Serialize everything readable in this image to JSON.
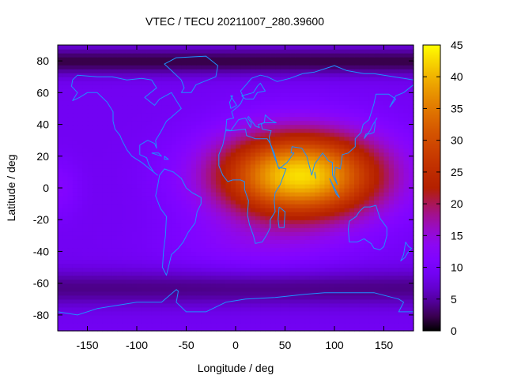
{
  "chart_data": {
    "type": "heatmap",
    "title": "VTEC / TECU 20211007_280.39600",
    "xlabel": "Longitude / deg",
    "ylabel": "Latitude / deg",
    "xlim": [
      -180,
      180
    ],
    "ylim": [
      -90,
      90
    ],
    "x_ticks": [
      -150,
      -100,
      -50,
      0,
      50,
      100,
      150
    ],
    "y_ticks": [
      -80,
      -60,
      -40,
      -20,
      0,
      20,
      40,
      60,
      80
    ],
    "colorbar": {
      "min": 0,
      "max": 45,
      "ticks": [
        0,
        5,
        10,
        15,
        20,
        25,
        30,
        35,
        40,
        45
      ],
      "colormap": "gnuplot"
    },
    "overlay": "coastlines",
    "overlay_color": "#1e90ff",
    "field_description": {
      "background_tec": 9,
      "peak": {
        "lon": 65,
        "lat": 0,
        "tec": 45
      },
      "crest_lat": 8,
      "high_region_lon_range": [
        -45,
        135
      ],
      "high_region_lat_range": [
        -30,
        30
      ],
      "low_bands": [
        {
          "lat": -63,
          "tec": 4
        },
        {
          "lat": 80,
          "tec": 2
        }
      ]
    }
  }
}
